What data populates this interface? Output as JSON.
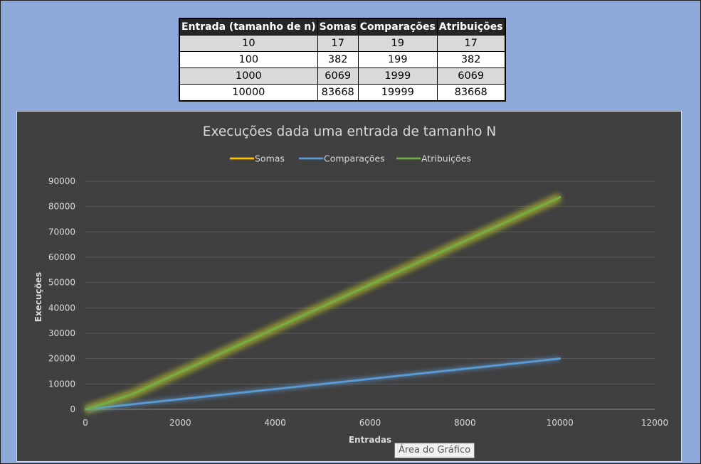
{
  "table": {
    "headers": [
      "Entrada (tamanho de n)",
      "Somas",
      "Comparações",
      "Atribuições"
    ],
    "rows": [
      [
        "10",
        "17",
        "19",
        "17"
      ],
      [
        "100",
        "382",
        "199",
        "382"
      ],
      [
        "1000",
        "6069",
        "1999",
        "6069"
      ],
      [
        "10000",
        "83668",
        "19999",
        "83668"
      ]
    ]
  },
  "tooltip": "Área do Gráfico",
  "chart_data": {
    "type": "scatter",
    "title": "Execuções dada uma entrada de tamanho N",
    "xlabel": "Entradas",
    "ylabel": "Execuções",
    "xlim": [
      0,
      12000
    ],
    "ylim": [
      0,
      90000
    ],
    "xticks": [
      "0",
      "2000",
      "4000",
      "6000",
      "8000",
      "10000",
      "12000"
    ],
    "yticks": [
      "0",
      "10000",
      "20000",
      "30000",
      "40000",
      "50000",
      "60000",
      "70000",
      "80000",
      "90000"
    ],
    "grid": true,
    "legend_position": "top",
    "series": [
      {
        "name": "Somas",
        "color": "#ffc000",
        "x": [
          10,
          100,
          1000,
          10000
        ],
        "y": [
          17,
          382,
          6069,
          83668
        ]
      },
      {
        "name": "Comparações",
        "color": "#5b9bd5",
        "x": [
          10,
          100,
          1000,
          10000
        ],
        "y": [
          19,
          199,
          1999,
          19999
        ]
      },
      {
        "name": "Atribuições",
        "color": "#70ad47",
        "x": [
          10,
          100,
          1000,
          10000
        ],
        "y": [
          17,
          382,
          6069,
          83668
        ]
      }
    ]
  }
}
